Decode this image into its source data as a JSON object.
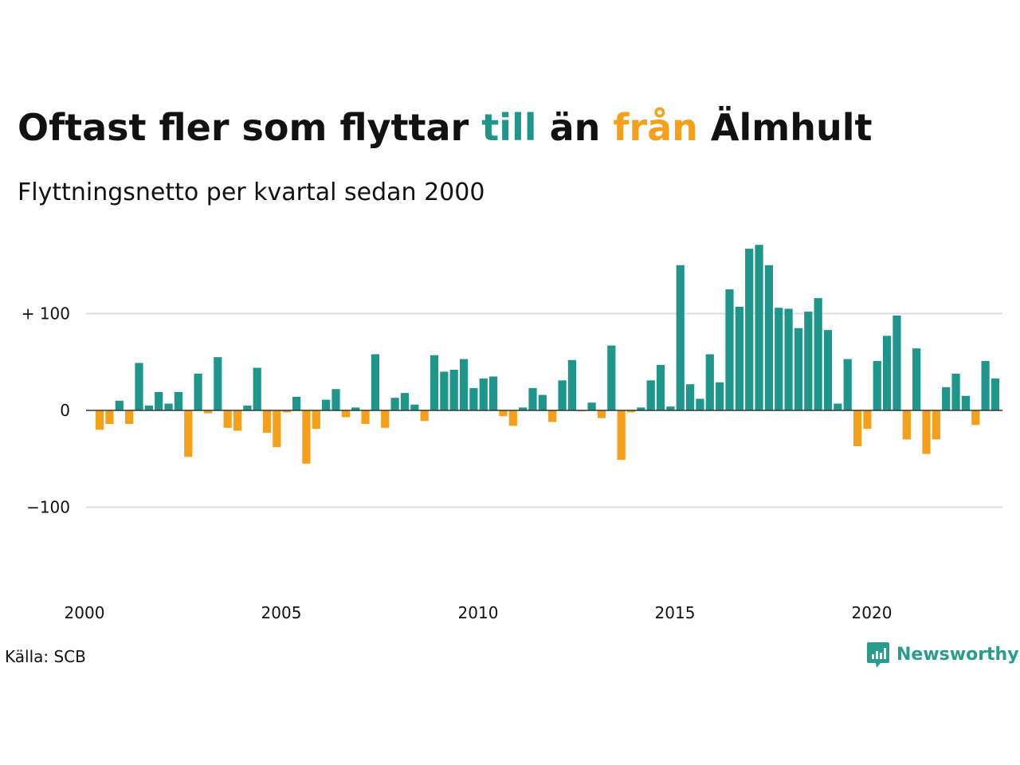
{
  "title_parts": {
    "before": "Oftast fler som flyttar ",
    "till": "till",
    "middle": " än ",
    "fran": "från",
    "after": " Älmhult"
  },
  "subtitle": "Flyttningsnetto per kvartal sedan 2000",
  "source": "Källa: SCB",
  "logo_text": "Newsworthy",
  "colors": {
    "positive": "#1f968b",
    "negative": "#f5a01a",
    "grid": "#dddddd",
    "zero_line": "#333333",
    "brand": "#2a9c8c"
  },
  "chart_data": {
    "type": "bar",
    "title": "Oftast fler som flyttar till än från Älmhult",
    "subtitle": "Flyttningsnetto per kvartal sedan 2000",
    "ylim": [
      -190,
      175
    ],
    "y_ticks": [
      {
        "value": 100,
        "label": "+ 100"
      },
      {
        "value": 0,
        "label": "0"
      },
      {
        "value": -100,
        "label": "−100"
      }
    ],
    "x_ticks": [
      {
        "value": 2000,
        "label": "2000"
      },
      {
        "value": 2005,
        "label": "2005"
      },
      {
        "value": 2010,
        "label": "2010"
      },
      {
        "value": 2015,
        "label": "2015"
      },
      {
        "value": 2020,
        "label": "2020"
      }
    ],
    "x_start": 2000,
    "periods_per_year": 4,
    "values": [
      -20,
      -14,
      10,
      -14,
      49,
      5,
      19,
      7,
      19,
      -48,
      38,
      -3,
      55,
      -18,
      -21,
      5,
      44,
      -23,
      -38,
      -2,
      14,
      -55,
      -19,
      11,
      22,
      -7,
      3,
      -14,
      58,
      -18,
      13,
      18,
      6,
      -11,
      57,
      40,
      42,
      53,
      23,
      33,
      35,
      -6,
      -16,
      3,
      23,
      16,
      -12,
      31,
      52,
      -1,
      8,
      -8,
      67,
      -51,
      -2,
      3,
      31,
      47,
      4,
      150,
      27,
      12,
      58,
      29,
      125,
      107,
      167,
      171,
      150,
      106,
      105,
      85,
      102,
      116,
      83,
      7,
      53,
      -37,
      -19,
      51,
      77,
      98,
      -30,
      64,
      -45,
      -30,
      24,
      38,
      15,
      -15,
      51,
      33
    ]
  }
}
